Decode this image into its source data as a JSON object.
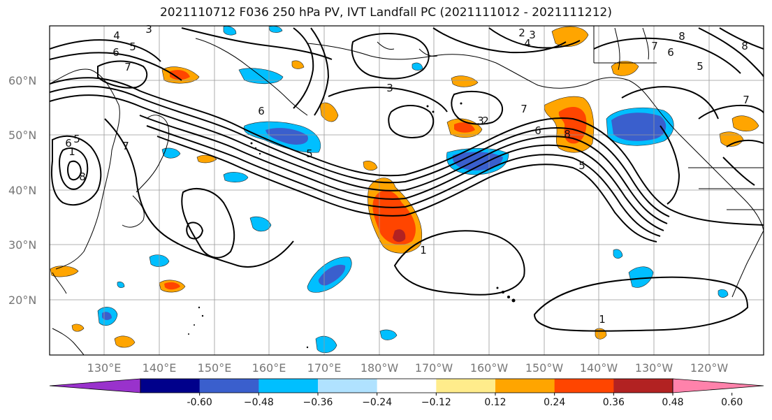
{
  "title": "2021110712 F036 250 hPa PV, IVT Landfall PC (2021111012 - 2021111212)",
  "lat_labels": [
    "60°N",
    "50°N",
    "40°N",
    "30°N",
    "20°N"
  ],
  "lon_labels": [
    "130°E",
    "140°E",
    "150°E",
    "160°E",
    "170°E",
    "180°W",
    "170°W",
    "160°W",
    "150°W",
    "140°W",
    "130°W",
    "120°W"
  ],
  "colorbar": {
    "ticks": [
      "-0.60",
      "−0.48",
      "−0.36",
      "−0.24",
      "−0.12",
      "0.12",
      "0.24",
      "0.36",
      "0.48",
      "0.60"
    ],
    "colors": [
      "#9932cc",
      "#00008b",
      "#3a5fcd",
      "#00bfff",
      "#b0e2ff",
      "#ffffff",
      "#ffec8b",
      "#ffa500",
      "#ff4500",
      "#b22222",
      "#ff82ab"
    ]
  },
  "contour_labels": [
    "4",
    "3",
    "6",
    "5",
    "7",
    "2",
    "3",
    "4",
    "7",
    "6",
    "8",
    "5",
    "3",
    "6",
    "8",
    "7",
    "5",
    "2",
    "1",
    "1",
    "6",
    "5",
    "1",
    "8",
    "3",
    "6",
    "7",
    "8",
    "5",
    "7"
  ],
  "colors": {
    "contour": "#000000",
    "grid": "#888888",
    "coast": "#000000"
  }
}
